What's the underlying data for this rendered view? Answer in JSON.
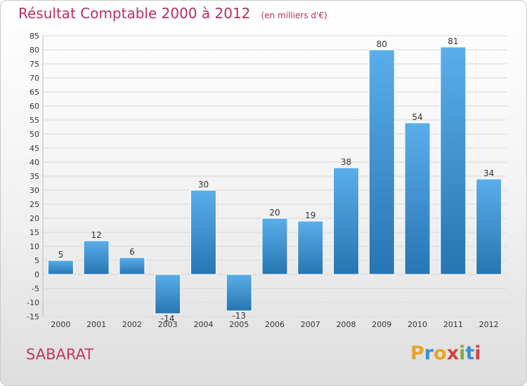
{
  "title": "Résultat Comptable 2000 à 2012",
  "unit_note": "(en milliers d'€)",
  "commune": "SABARAT",
  "logo": {
    "letters": [
      "P",
      "r",
      "o",
      "x",
      "i",
      "t",
      "i"
    ],
    "colors": [
      "#e8a423",
      "#3a8fd6",
      "#e8a423",
      "#d94040",
      "#74b43c",
      "#3a8fd6",
      "#d94040"
    ]
  },
  "colors": {
    "bar_light": "#5aaeea",
    "bar_dark": "#2775b3",
    "title": "#b5305f",
    "commune": "#c0395f",
    "grid": "#d8d8d8"
  },
  "chart_data": {
    "type": "bar",
    "title": "Résultat Comptable 2000 à 2012",
    "ylabel": "en milliers d'€",
    "xlabel": "",
    "categories": [
      "2000",
      "2001",
      "2002",
      "2003",
      "2004",
      "2005",
      "2006",
      "2007",
      "2008",
      "2009",
      "2010",
      "2011",
      "2012"
    ],
    "values": [
      5,
      12,
      6,
      -14,
      30,
      -13,
      20,
      19,
      38,
      80,
      54,
      81,
      34
    ],
    "ylim": [
      -15,
      85
    ],
    "ytick_step": 5,
    "grid": true
  }
}
